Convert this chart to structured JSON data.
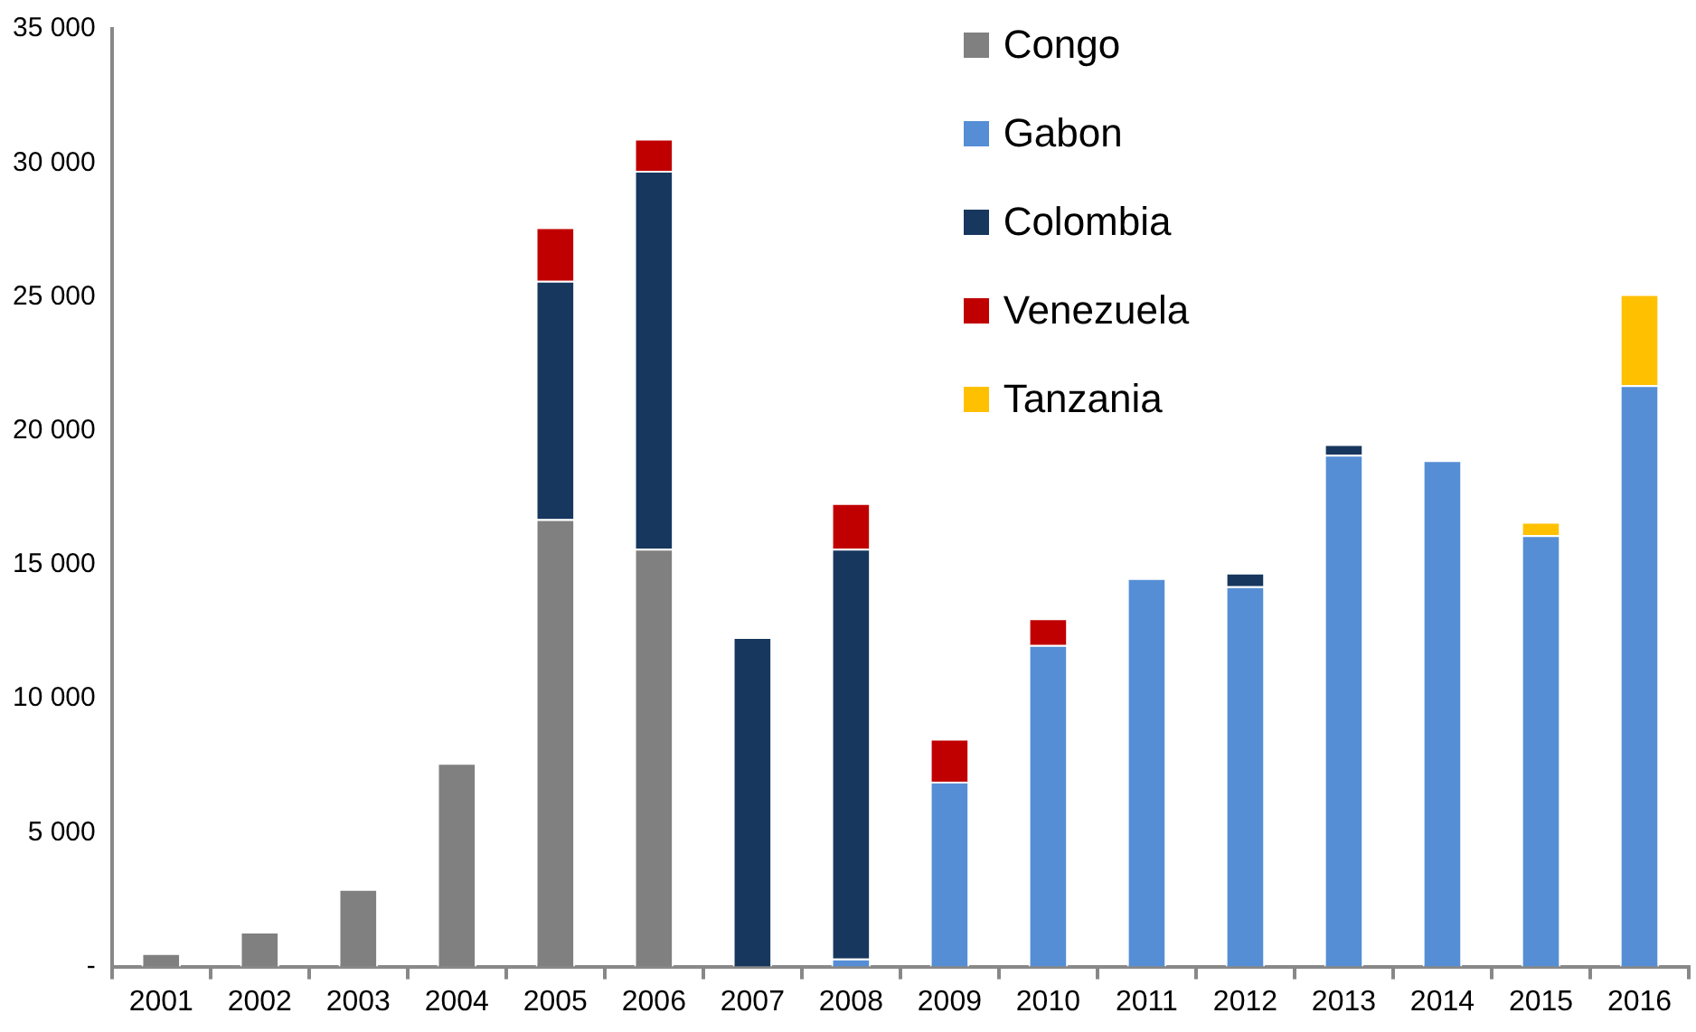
{
  "chart_data": {
    "type": "bar",
    "stacked": true,
    "legend": "top right",
    "grid": false,
    "categories": [
      "2001",
      "2002",
      "2003",
      "2004",
      "2005",
      "2006",
      "2007",
      "2008",
      "2009",
      "2010",
      "2011",
      "2012",
      "2013",
      "2014",
      "2015",
      "2016"
    ],
    "ylim": [
      0,
      35000
    ],
    "yticks": [
      {
        "value": 0,
        "label": "-"
      },
      {
        "value": 5000,
        "label": "5 000"
      },
      {
        "value": 10000,
        "label": "10 000"
      },
      {
        "value": 15000,
        "label": "15 000"
      },
      {
        "value": 20000,
        "label": "20 000"
      },
      {
        "value": 25000,
        "label": "25 000"
      },
      {
        "value": 30000,
        "label": "30 000"
      },
      {
        "value": 35000,
        "label": "35 000"
      }
    ],
    "series": [
      {
        "name": "Congo",
        "color": "#808080",
        "values": [
          500,
          1300,
          2900,
          7600,
          16700,
          15600,
          null,
          null,
          null,
          null,
          null,
          null,
          null,
          null,
          null,
          null
        ]
      },
      {
        "name": "Gabon",
        "color": "#558ed5",
        "values": [
          null,
          null,
          null,
          null,
          null,
          null,
          null,
          300,
          6900,
          12000,
          14500,
          14200,
          19100,
          18900,
          16100,
          21700
        ]
      },
      {
        "name": "Colombia",
        "color": "#17375e",
        "values": [
          null,
          null,
          null,
          null,
          8900,
          14100,
          12300,
          15300,
          null,
          null,
          null,
          500,
          400,
          null,
          null,
          null
        ]
      },
      {
        "name": "Venezuela",
        "color": "#c00000",
        "values": [
          null,
          null,
          null,
          null,
          2000,
          1200,
          null,
          1700,
          1600,
          1000,
          null,
          null,
          null,
          null,
          null,
          null
        ]
      },
      {
        "name": "Tanzania",
        "color": "#ffc000",
        "values": [
          null,
          null,
          null,
          null,
          null,
          null,
          null,
          null,
          null,
          null,
          null,
          null,
          null,
          null,
          500,
          3400
        ]
      }
    ]
  }
}
